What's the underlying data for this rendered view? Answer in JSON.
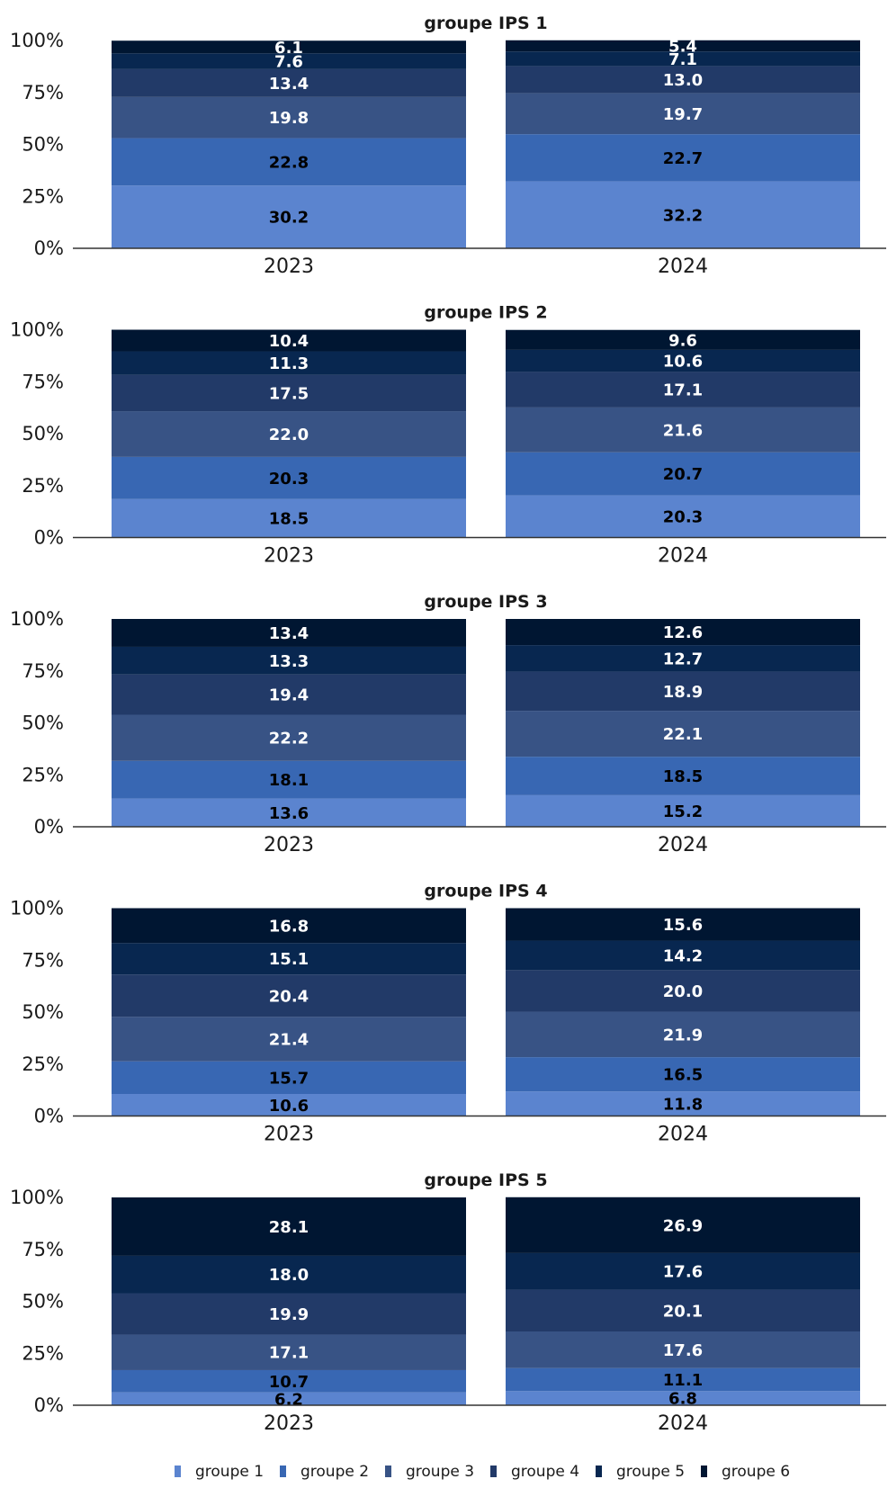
{
  "chart_data": {
    "type": "bar",
    "stacked": true,
    "percent_axis": true,
    "ylim": [
      0,
      100
    ],
    "yticks": [
      "0%",
      "25%",
      "50%",
      "75%",
      "100%"
    ],
    "categories": [
      "2023",
      "2024"
    ],
    "series_names": [
      "groupe 1",
      "groupe 2",
      "groupe 3",
      "groupe 4",
      "groupe 5",
      "groupe 6"
    ],
    "colors": [
      "#5b84cf",
      "#3867b3",
      "#385385",
      "#223a68",
      "#082750",
      "#001632"
    ],
    "label_colors": [
      "#000000",
      "#000000",
      "#ffffff",
      "#ffffff",
      "#ffffff",
      "#ffffff"
    ],
    "legend_position": "bottom",
    "panels": [
      {
        "title": "groupe IPS 1",
        "series": [
          {
            "name": "groupe 1",
            "values": [
              30.2,
              32.2
            ]
          },
          {
            "name": "groupe 2",
            "values": [
              22.8,
              22.7
            ]
          },
          {
            "name": "groupe 3",
            "values": [
              19.8,
              19.7
            ]
          },
          {
            "name": "groupe 4",
            "values": [
              13.4,
              13.0
            ]
          },
          {
            "name": "groupe 5",
            "values": [
              7.6,
              7.1
            ]
          },
          {
            "name": "groupe 6",
            "values": [
              6.1,
              5.4
            ]
          }
        ]
      },
      {
        "title": "groupe IPS 2",
        "series": [
          {
            "name": "groupe 1",
            "values": [
              18.5,
              20.3
            ]
          },
          {
            "name": "groupe 2",
            "values": [
              20.3,
              20.7
            ]
          },
          {
            "name": "groupe 3",
            "values": [
              22.0,
              21.6
            ]
          },
          {
            "name": "groupe 4",
            "values": [
              17.5,
              17.1
            ]
          },
          {
            "name": "groupe 5",
            "values": [
              11.3,
              10.6
            ]
          },
          {
            "name": "groupe 6",
            "values": [
              10.4,
              9.6
            ]
          }
        ]
      },
      {
        "title": "groupe IPS 3",
        "series": [
          {
            "name": "groupe 1",
            "values": [
              13.6,
              15.2
            ]
          },
          {
            "name": "groupe 2",
            "values": [
              18.1,
              18.5
            ]
          },
          {
            "name": "groupe 3",
            "values": [
              22.2,
              22.1
            ]
          },
          {
            "name": "groupe 4",
            "values": [
              19.4,
              18.9
            ]
          },
          {
            "name": "groupe 5",
            "values": [
              13.3,
              12.7
            ]
          },
          {
            "name": "groupe 6",
            "values": [
              13.4,
              12.6
            ]
          }
        ]
      },
      {
        "title": "groupe IPS 4",
        "series": [
          {
            "name": "groupe 1",
            "values": [
              10.6,
              11.8
            ]
          },
          {
            "name": "groupe 2",
            "values": [
              15.7,
              16.5
            ]
          },
          {
            "name": "groupe 3",
            "values": [
              21.4,
              21.9
            ]
          },
          {
            "name": "groupe 4",
            "values": [
              20.4,
              20.0
            ]
          },
          {
            "name": "groupe 5",
            "values": [
              15.1,
              14.2
            ]
          },
          {
            "name": "groupe 6",
            "values": [
              16.8,
              15.6
            ]
          }
        ]
      },
      {
        "title": "groupe IPS 5",
        "series": [
          {
            "name": "groupe 1",
            "values": [
              6.2,
              6.8
            ]
          },
          {
            "name": "groupe 2",
            "values": [
              10.7,
              11.1
            ]
          },
          {
            "name": "groupe 3",
            "values": [
              17.1,
              17.6
            ]
          },
          {
            "name": "groupe 4",
            "values": [
              19.9,
              20.1
            ]
          },
          {
            "name": "groupe 5",
            "values": [
              18.0,
              17.6
            ]
          },
          {
            "name": "groupe 6",
            "values": [
              28.1,
              26.9
            ]
          }
        ]
      }
    ]
  }
}
